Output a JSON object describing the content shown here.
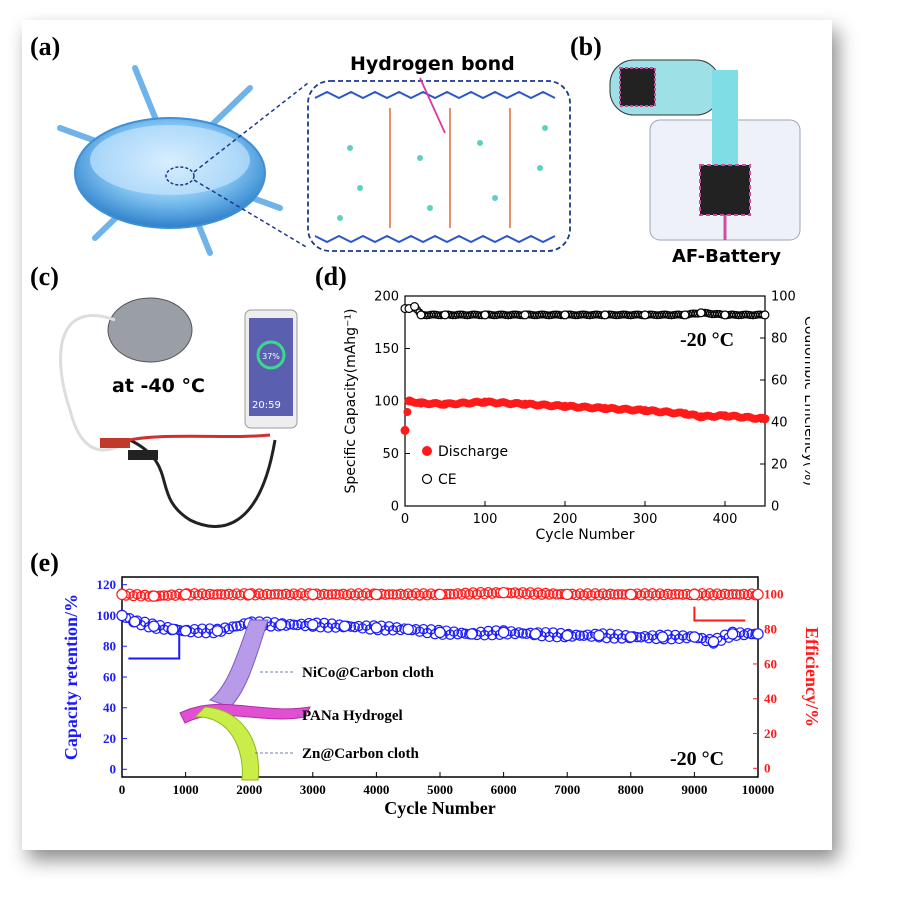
{
  "panels": {
    "a": {
      "label": "(a)",
      "title": "Hydrogen bond"
    },
    "b": {
      "label": "(b)",
      "caption": "AF-Battery"
    },
    "c": {
      "label": "(c)",
      "temp": "at -40 °C",
      "phone_readout": "37%",
      "phone_time": "20:59"
    },
    "d": {
      "label": "(d)"
    },
    "e": {
      "label": "(e)"
    }
  },
  "chart_data": [
    {
      "panel": "d",
      "type": "scatter",
      "xlabel": "Cycle Number",
      "ylabel": "Specific Capacity(mAhg⁻¹)",
      "y2label": "Coulombic Efficiency(%)",
      "xlim": [
        0,
        450
      ],
      "ylim": [
        0,
        200
      ],
      "y2lim": [
        0,
        100
      ],
      "xticks": [
        0,
        100,
        200,
        300,
        400
      ],
      "yticks": [
        0,
        50,
        100,
        150,
        200
      ],
      "y2ticks": [
        0,
        20,
        40,
        60,
        80,
        100
      ],
      "annotation": "-20 °C",
      "legend": [
        "Discharge",
        "CE"
      ],
      "legend_position": "middle-left",
      "series": [
        {
          "name": "Discharge",
          "axis": "left",
          "color": "#ff1a1a",
          "marker": "filled-circle",
          "x": [
            0,
            5,
            20,
            50,
            100,
            150,
            200,
            250,
            300,
            350,
            370,
            400,
            450
          ],
          "y": [
            72,
            100,
            98,
            97,
            99,
            97,
            95,
            93,
            91,
            88,
            85,
            86,
            83
          ]
        },
        {
          "name": "CE",
          "axis": "right",
          "color": "#000000",
          "marker": "open-circle",
          "x": [
            0,
            5,
            12,
            20,
            50,
            100,
            150,
            200,
            250,
            300,
            350,
            370,
            400,
            450
          ],
          "y": [
            94,
            94,
            95,
            91,
            91,
            91,
            91,
            91,
            91,
            91,
            91,
            92,
            91,
            91
          ]
        }
      ]
    },
    {
      "panel": "e",
      "type": "scatter",
      "xlabel": "Cycle Number",
      "ylabel": "Capacity retention/%",
      "y2label": "Efficiency/%",
      "xlim": [
        0,
        10000
      ],
      "ylim": [
        -5,
        125
      ],
      "y2lim": [
        -5,
        110
      ],
      "xticks": [
        0,
        1000,
        2000,
        3000,
        4000,
        5000,
        6000,
        7000,
        8000,
        9000,
        10000
      ],
      "yticks": [
        0,
        20,
        40,
        60,
        80,
        100,
        120
      ],
      "y2ticks": [
        0,
        20,
        40,
        60,
        80,
        100
      ],
      "annotation": "-20 °C",
      "series": [
        {
          "name": "",
          "axis": "left",
          "color": "#1a1aff",
          "marker": "open-circle",
          "x": [
            0,
            200,
            500,
            800,
            1000,
            1500,
            2000,
            2500,
            3000,
            3500,
            4000,
            4500,
            5000,
            5500,
            6000,
            6500,
            7000,
            7500,
            8000,
            8500,
            9000,
            9300,
            9600,
            10000
          ],
          "y": [
            100,
            96,
            93,
            91,
            90,
            90,
            95,
            94,
            94,
            93,
            92,
            91,
            89,
            88,
            89,
            88,
            87,
            87,
            86,
            86,
            86,
            83,
            88,
            88
          ]
        },
        {
          "name": "",
          "axis": "right",
          "color": "#ff1a1a",
          "marker": "open-circle",
          "x": [
            0,
            500,
            1000,
            2000,
            3000,
            4000,
            5000,
            6000,
            7000,
            8000,
            9000,
            10000
          ],
          "y": [
            100,
            99,
            100,
            100,
            100,
            100,
            100,
            101,
            100,
            100,
            100,
            100
          ]
        }
      ],
      "legend_labels": [
        "NiCo@Carbon cloth",
        "PANa Hydrogel",
        "Zn@Carbon cloth"
      ]
    }
  ],
  "colors": {
    "blue": "#1a1aff",
    "red": "#ff1a1a",
    "black": "#000000"
  }
}
